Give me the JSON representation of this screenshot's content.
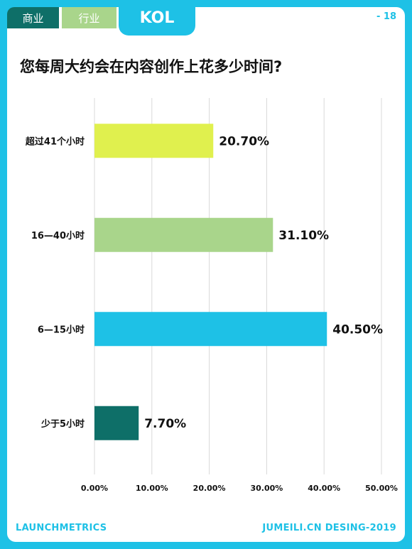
{
  "header": {
    "tabs": [
      {
        "label": "商业",
        "color": "#0e6f68"
      },
      {
        "label": "行业",
        "color": "#a9d58b"
      },
      {
        "label": "KOL",
        "color": "#1ec1e6"
      }
    ],
    "page_number": "- 18"
  },
  "footer": {
    "left": "LAUNCHMETRICS",
    "right": "JUMEILI.CN DESING-2019"
  },
  "chart_data": {
    "type": "bar",
    "orientation": "horizontal",
    "title": "您每周大约会在内容创作上花多少时间?",
    "categories": [
      "超过41个小时",
      "16—40小时",
      "6—15小时",
      "少于5小时"
    ],
    "values": [
      20.7,
      31.1,
      40.5,
      7.7
    ],
    "value_labels": [
      "20.70%",
      "31.10%",
      "40.50%",
      "7.70%"
    ],
    "colors": [
      "#e0f04e",
      "#a9d58b",
      "#1ec1e6",
      "#0e6f68"
    ],
    "xlim": [
      0,
      50
    ],
    "xticks": [
      "0.00%",
      "10.00%",
      "20.00%",
      "30.00%",
      "40.00%",
      "50.00%"
    ],
    "grid": true
  }
}
